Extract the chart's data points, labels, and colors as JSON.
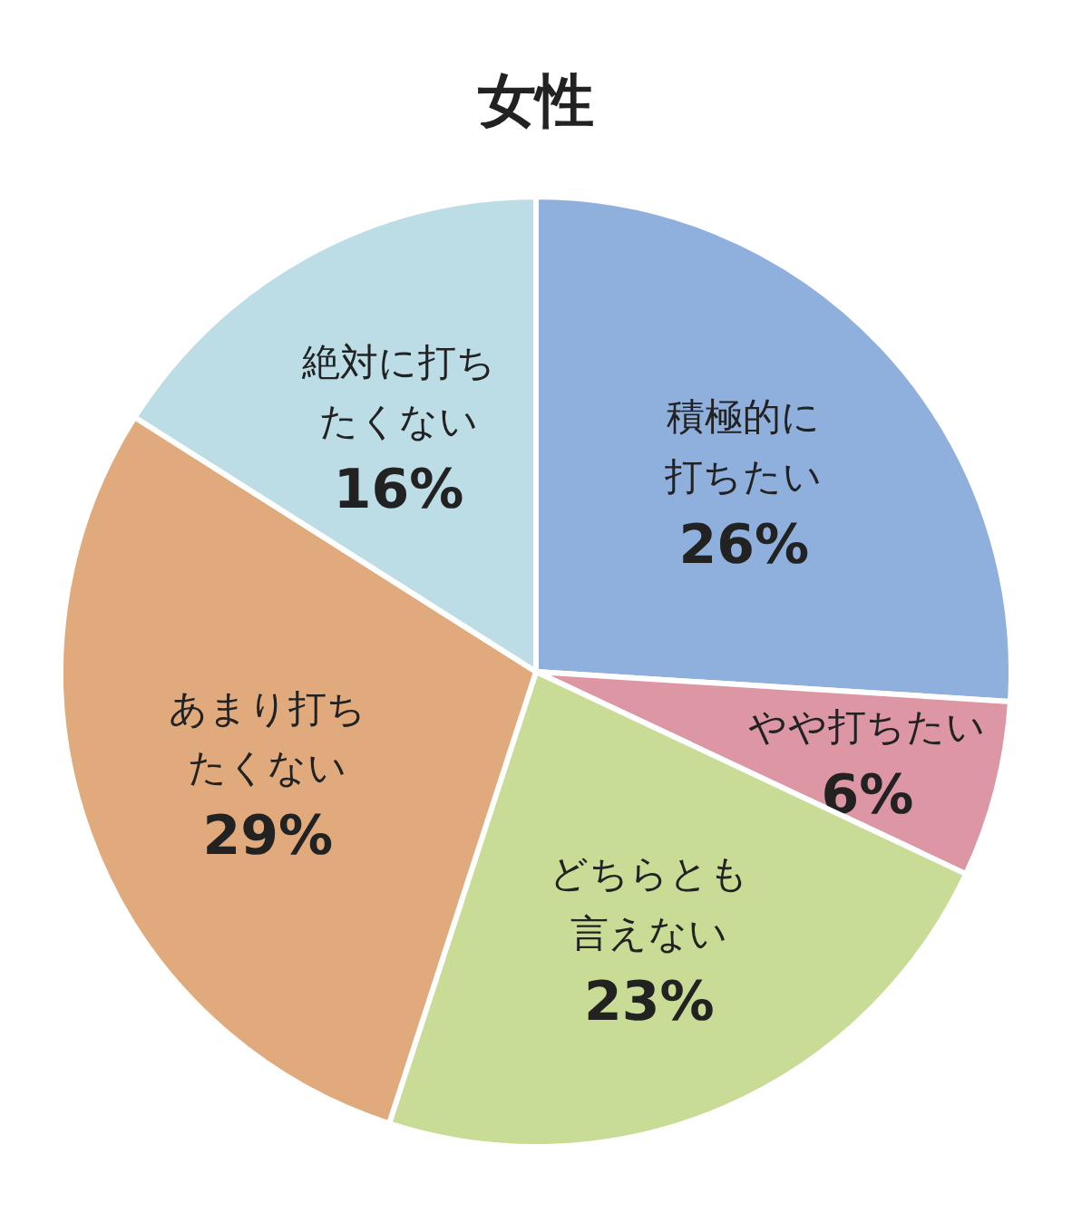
{
  "chart_data": {
    "type": "pie",
    "title": "女性",
    "categories": [
      "積極的に打ちたい",
      "やや打ちたい",
      "どちらとも言えない",
      "あまり打ちたくない",
      "絶対に打ちたくない"
    ],
    "values": [
      26,
      6,
      23,
      29,
      16
    ],
    "value_labels": [
      "26%",
      "6%",
      "23%",
      "29%",
      "16%"
    ],
    "colors": [
      "#8fb0dc",
      "#dc96a4",
      "#c8dc96",
      "#e0aa7c",
      "#bcdce6"
    ]
  }
}
